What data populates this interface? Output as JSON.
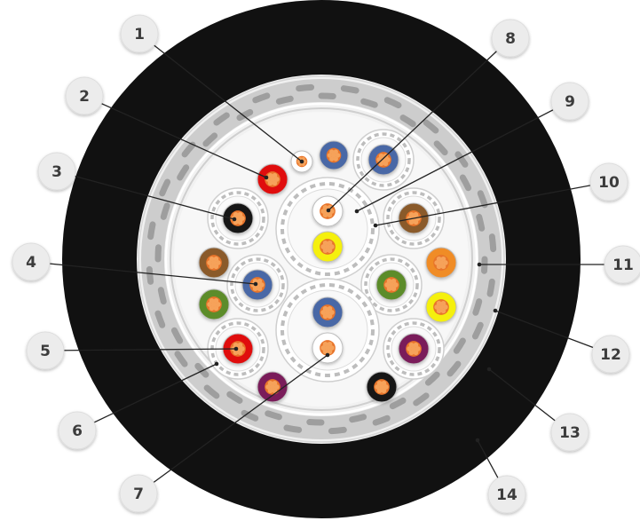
{
  "diagram": {
    "callouts": [
      {
        "id": "1",
        "text": "1"
      },
      {
        "id": "2",
        "text": "2"
      },
      {
        "id": "3",
        "text": "3"
      },
      {
        "id": "4",
        "text": "4"
      },
      {
        "id": "5",
        "text": "5"
      },
      {
        "id": "6",
        "text": "6"
      },
      {
        "id": "7",
        "text": "7"
      },
      {
        "id": "8",
        "text": "8"
      },
      {
        "id": "9",
        "text": "9"
      },
      {
        "id": "10",
        "text": "10"
      },
      {
        "id": "11",
        "text": "11"
      },
      {
        "id": "12",
        "text": "12"
      },
      {
        "id": "13",
        "text": "13"
      },
      {
        "id": "14",
        "text": "14"
      }
    ],
    "colors": {
      "jacket": "#111111",
      "inner_fill": "#f4f4f4",
      "shield_band": "#cfcfcf",
      "shield_pattern": "#9e9e9e",
      "copper": "#e8742a",
      "red": "#e01010",
      "blue": "#4a67a6",
      "black": "#141414",
      "brown": "#8a5a2b",
      "green": "#5c8c2a",
      "orange": "#f08c28",
      "yellow": "#f5f008",
      "purple": "#7a1f5a",
      "white": "#ffffff",
      "callout_bubble": "#ececec",
      "leader": "#222222"
    }
  }
}
